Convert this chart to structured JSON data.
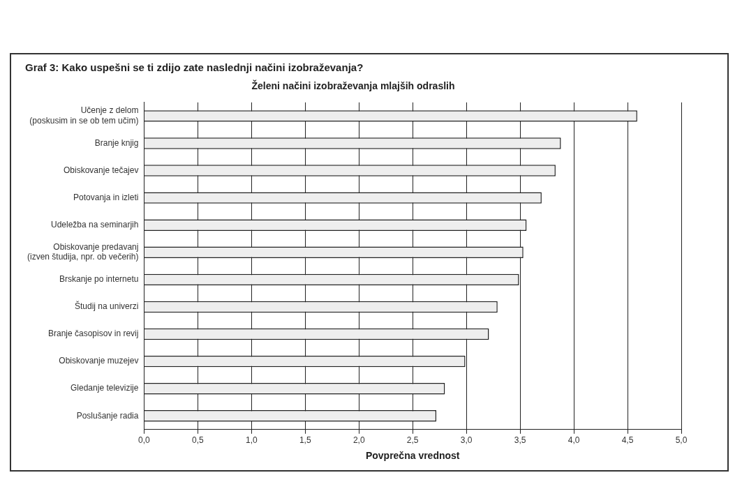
{
  "chart_data": {
    "type": "bar",
    "orientation": "horizontal",
    "title": "Graf 3: Kako uspešni se ti zdijo zate naslednji načini izobraževanja?",
    "subtitle": "Želeni načini izobraževanja mlajših odraslih",
    "xlabel": "Povprečna vrednost",
    "categories": [
      "Učenje z delom\n(poskusim in se ob tem učim)",
      "Branje knjig",
      "Obiskovanje tečajev",
      "Potovanja in izleti",
      "Udeležba na seminarjih",
      "Obiskovanje predavanj\n(izven študija, npr. ob večerih)",
      "Brskanje po internetu",
      "Študij na univerzi",
      "Branje časopisov in revij",
      "Obiskovanje muzejev",
      "Gledanje televizije",
      "Poslušanje radia"
    ],
    "values": [
      4.59,
      3.88,
      3.83,
      3.7,
      3.56,
      3.53,
      3.49,
      3.29,
      3.21,
      2.99,
      2.8,
      2.72
    ],
    "color": "#eeeeee",
    "xlim": [
      0,
      5
    ],
    "xticks": [
      {
        "value": 0,
        "label": "0,0"
      },
      {
        "value": 0.5,
        "label": "0,5"
      },
      {
        "value": 1,
        "label": "1,0"
      },
      {
        "value": 1.5,
        "label": "1,5"
      },
      {
        "value": 2,
        "label": "2,0"
      },
      {
        "value": 2.5,
        "label": "2,5"
      },
      {
        "value": 3,
        "label": "3,0"
      },
      {
        "value": 3.5,
        "label": "3,5"
      },
      {
        "value": 4,
        "label": "4,0"
      },
      {
        "value": 4.5,
        "label": "4,5"
      },
      {
        "value": 5,
        "label": "5,0"
      }
    ],
    "grid": "x",
    "legend": false
  }
}
